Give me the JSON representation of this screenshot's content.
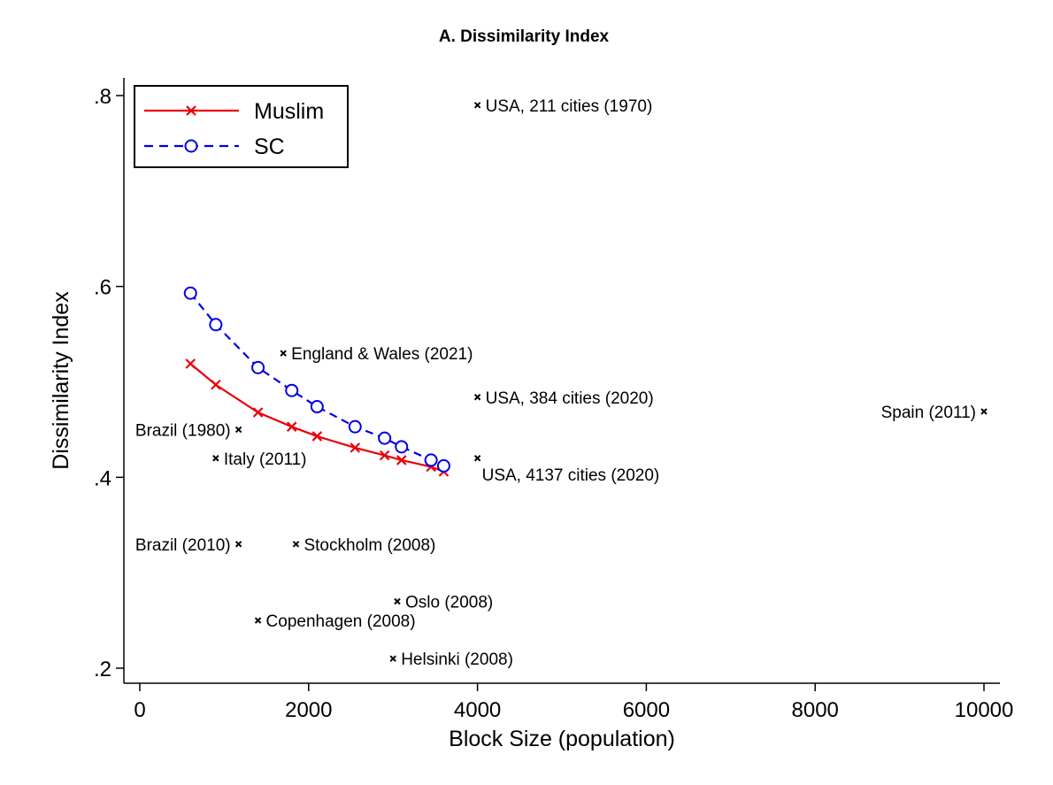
{
  "chart_data": {
    "type": "scatter",
    "title": "A. Dissimilarity Index",
    "xlabel": "Block Size (population)",
    "ylabel": "Dissimilarity Index",
    "xlim": [
      -150,
      10100
    ],
    "ylim": [
      0.185,
      0.82
    ],
    "x_ticks": [
      0,
      2000,
      4000,
      6000,
      8000,
      10000
    ],
    "x_tick_labels": [
      "0",
      "2000",
      "4000",
      "6000",
      "8000",
      "10000"
    ],
    "y_ticks": [
      0.2,
      0.4,
      0.6,
      0.8
    ],
    "y_tick_labels": [
      ".2",
      ".4",
      ".6",
      ".8"
    ],
    "grid": false,
    "legend_position": "top-left",
    "series": [
      {
        "name": "Muslim",
        "type": "line",
        "color": "#e8000b",
        "marker": "x",
        "dash": "solid",
        "x": [
          600,
          900,
          1400,
          1800,
          2100,
          2550,
          2900,
          3100,
          3450,
          3600
        ],
        "y": [
          0.519,
          0.497,
          0.468,
          0.453,
          0.443,
          0.431,
          0.423,
          0.418,
          0.411,
          0.406
        ]
      },
      {
        "name": "SC",
        "type": "line",
        "color": "#0000e8",
        "marker": "circle",
        "dash": "dashed",
        "x": [
          600,
          900,
          1400,
          1800,
          2100,
          2550,
          2900,
          3100,
          3450,
          3600
        ],
        "y": [
          0.593,
          0.56,
          0.515,
          0.491,
          0.474,
          0.453,
          0.441,
          0.432,
          0.418,
          0.412
        ]
      }
    ],
    "annotations": [
      {
        "label": "USA, 211 cities (1970)",
        "x": 4000,
        "y": 0.79,
        "side": "right"
      },
      {
        "label": "England & Wales (2021)",
        "x": 1700,
        "y": 0.53,
        "side": "right"
      },
      {
        "label": "USA, 384 cities (2020)",
        "x": 4000,
        "y": 0.484,
        "side": "right"
      },
      {
        "label": "Spain (2011)",
        "x": 10000,
        "y": 0.469,
        "side": "left"
      },
      {
        "label": "Brazil (1980)",
        "x": 1170,
        "y": 0.45,
        "side": "left"
      },
      {
        "label": "Italy (2011)",
        "x": 900,
        "y": 0.42,
        "side": "right"
      },
      {
        "label": "USA, 4137 cities (2020)",
        "x": 4000,
        "y": 0.42,
        "side": "below-right"
      },
      {
        "label": "Brazil (2010)",
        "x": 1170,
        "y": 0.33,
        "side": "left"
      },
      {
        "label": "Stockholm (2008)",
        "x": 1850,
        "y": 0.33,
        "side": "right"
      },
      {
        "label": "Oslo (2008)",
        "x": 3050,
        "y": 0.27,
        "side": "right"
      },
      {
        "label": "Copenhagen (2008)",
        "x": 1400,
        "y": 0.25,
        "side": "right"
      },
      {
        "label": "Helsinki (2008)",
        "x": 3000,
        "y": 0.21,
        "side": "right"
      }
    ]
  }
}
